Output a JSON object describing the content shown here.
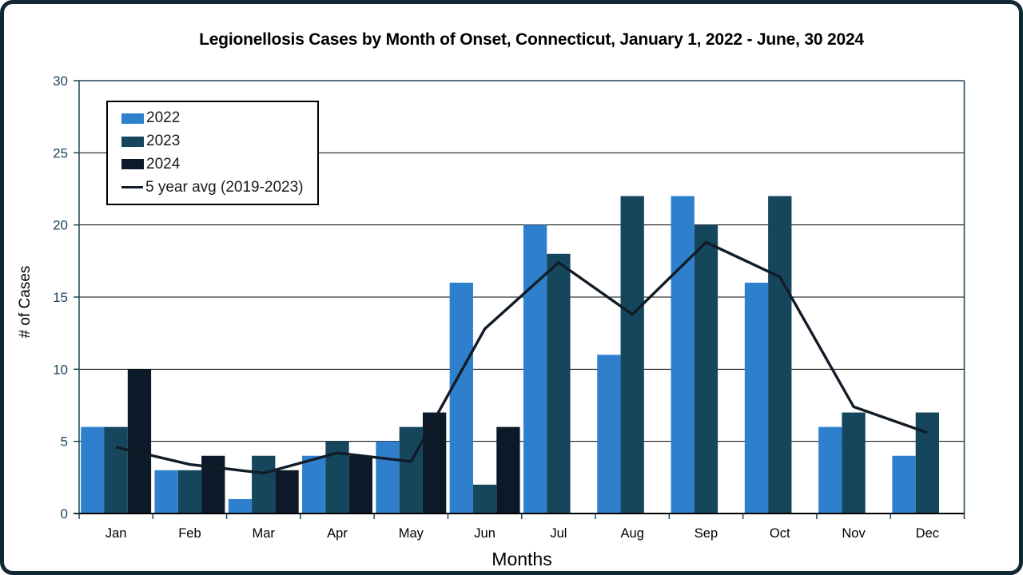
{
  "title": "Legionellosis Cases by Month of Onset, Connecticut, January 1, 2022 - June, 30 2024",
  "chart_data": {
    "type": "bar",
    "title": "Legionellosis Cases by Month of Onset, Connecticut, January 1, 2022 - June, 30 2024",
    "xlabel": "Months",
    "ylabel": "# of Cases",
    "ylim": [
      0,
      30
    ],
    "ytick_step": 5,
    "grid": true,
    "legend_position": "top-left-inside",
    "categories": [
      "Jan",
      "Feb",
      "Mar",
      "Apr",
      "May",
      "Jun",
      "Jul",
      "Aug",
      "Sep",
      "Oct",
      "Nov",
      "Dec"
    ],
    "series": [
      {
        "name": "2022",
        "type": "bar",
        "color": "#2E80CC",
        "values": [
          6,
          3,
          1,
          4,
          5,
          16,
          20,
          11,
          22,
          16,
          6,
          4
        ]
      },
      {
        "name": "2023",
        "type": "bar",
        "color": "#15465C",
        "values": [
          6,
          3,
          4,
          5,
          6,
          2,
          18,
          22,
          20,
          22,
          7,
          7
        ]
      },
      {
        "name": "2024",
        "type": "bar",
        "color": "#0B1929",
        "values": [
          10,
          4,
          3,
          4,
          7,
          6,
          null,
          null,
          null,
          null,
          null,
          null
        ]
      },
      {
        "name": "5 year avg (2019-2023)",
        "type": "line",
        "color": "#121C26",
        "values": [
          4.6,
          3.4,
          2.8,
          4.2,
          3.6,
          12.8,
          17.4,
          13.8,
          18.8,
          16.4,
          7.4,
          5.6
        ]
      }
    ]
  },
  "colors": {
    "background": "#FFFFFF",
    "frame_border": "#102833",
    "axis": "#1E4557",
    "gridline": "#000000",
    "tick_label": "#1E4557",
    "text": "#000000",
    "legend_border": "#000000"
  }
}
